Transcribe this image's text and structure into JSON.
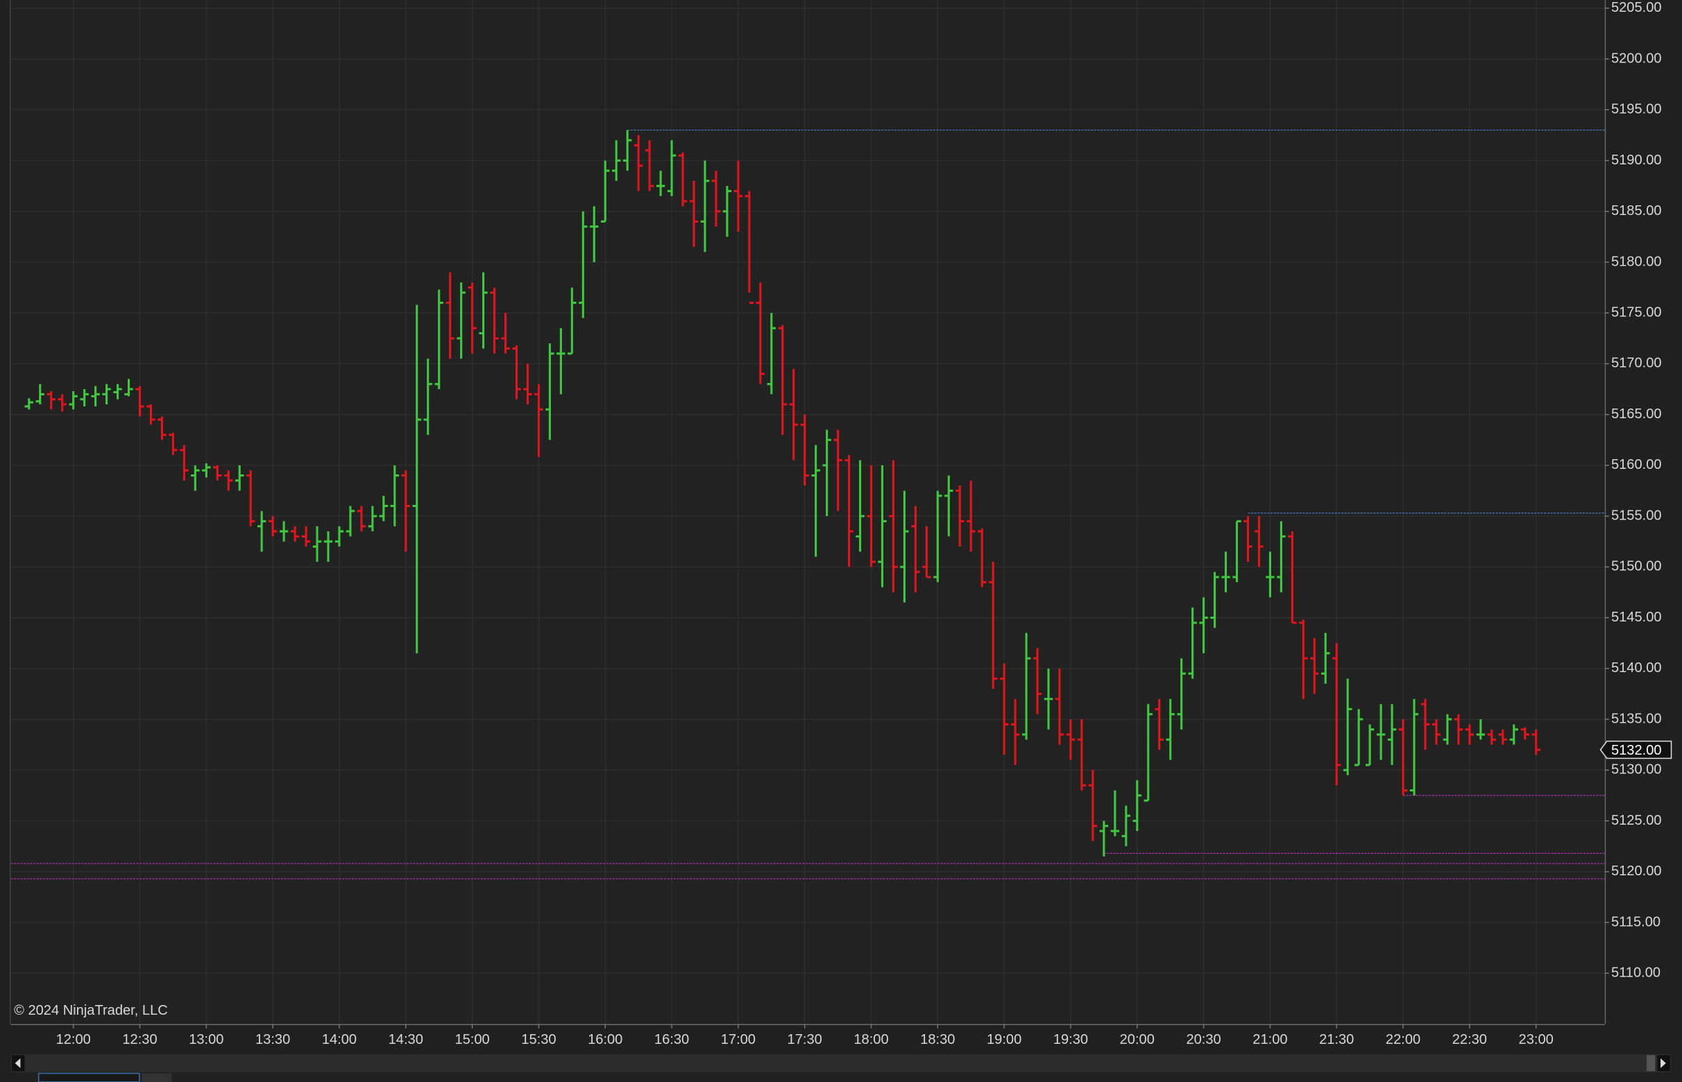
{
  "chart_data": {
    "type": "ohlc",
    "copyright": "© 2024 NinjaTrader, LLC",
    "up_color": "#3ec93e",
    "down_color": "#e3141e",
    "grid": true,
    "ylim": [
      5105,
      5205.8
    ],
    "xlim": [
      -1.65,
      142.2
    ],
    "yticks": [
      {
        "value": 5110,
        "label": "5110.00"
      },
      {
        "value": 5115,
        "label": "5115.00"
      },
      {
        "value": 5120,
        "label": "5120.00"
      },
      {
        "value": 5125,
        "label": "5125.00"
      },
      {
        "value": 5130,
        "label": "5130.00"
      },
      {
        "value": 5135,
        "label": "5135.00"
      },
      {
        "value": 5140,
        "label": "5140.00"
      },
      {
        "value": 5145,
        "label": "5145.00"
      },
      {
        "value": 5150,
        "label": "5150.00"
      },
      {
        "value": 5155,
        "label": "5155.00"
      },
      {
        "value": 5160,
        "label": "5160.00"
      },
      {
        "value": 5165,
        "label": "5165.00"
      },
      {
        "value": 5170,
        "label": "5170.00"
      },
      {
        "value": 5175,
        "label": "5175.00"
      },
      {
        "value": 5180,
        "label": "5180.00"
      },
      {
        "value": 5185,
        "label": "5185.00"
      },
      {
        "value": 5190,
        "label": "5190.00"
      },
      {
        "value": 5195,
        "label": "5195.00"
      },
      {
        "value": 5200,
        "label": "5200.00"
      },
      {
        "value": 5205,
        "label": "5205.00"
      }
    ],
    "xticks": [
      {
        "value": 4,
        "label": "12:00"
      },
      {
        "value": 10,
        "label": "12:30"
      },
      {
        "value": 16,
        "label": "13:00"
      },
      {
        "value": 22,
        "label": "13:30"
      },
      {
        "value": 28,
        "label": "14:00"
      },
      {
        "value": 34,
        "label": "14:30"
      },
      {
        "value": 40,
        "label": "15:00"
      },
      {
        "value": 46,
        "label": "15:30"
      },
      {
        "value": 52,
        "label": "16:00"
      },
      {
        "value": 58,
        "label": "16:30"
      },
      {
        "value": 64,
        "label": "17:00"
      },
      {
        "value": 70,
        "label": "17:30"
      },
      {
        "value": 76,
        "label": "18:00"
      },
      {
        "value": 82,
        "label": "18:30"
      },
      {
        "value": 88,
        "label": "19:00"
      },
      {
        "value": 94,
        "label": "19:30"
      },
      {
        "value": 100,
        "label": "20:00"
      },
      {
        "value": 106,
        "label": "20:30"
      },
      {
        "value": 112,
        "label": "21:00"
      },
      {
        "value": 118,
        "label": "21:30"
      },
      {
        "value": 124,
        "label": "22:00"
      },
      {
        "value": 130,
        "label": "22:30"
      },
      {
        "value": 136,
        "label": "23:00"
      }
    ],
    "last_price": {
      "value": 5132,
      "label": "5132.00"
    },
    "lines": [
      {
        "value": 5193,
        "color": "#3f7fc0",
        "x0": 54
      },
      {
        "value": 5155.3,
        "color": "#3f7fc0",
        "x0": 110
      },
      {
        "value": 5127.5,
        "color": "#b030b0",
        "x0": 124
      },
      {
        "value": 5121.8,
        "color": "#b030b0",
        "x0": 97
      },
      {
        "value": 5120.8,
        "color": "#b030b0",
        "x0": -1.65
      },
      {
        "value": 5119.3,
        "color": "#b030b0",
        "x0": -1.65
      }
    ],
    "open": [
      5165.8,
      5166.3,
      5167,
      5166.5,
      5166,
      5166.5,
      5166.8,
      5167,
      5167.2,
      5167,
      5167.5,
      5165.8,
      5164.5,
      5163,
      5161.5,
      5159,
      5159.5,
      5159.8,
      5159,
      5158.5,
      5159,
      5154,
      5154.5,
      5153.5,
      5153.5,
      5153,
      5152,
      5152.5,
      5152.5,
      5153.5,
      5155.5,
      5154,
      5155,
      5156,
      5159,
      5156,
      5164.5,
      5168,
      5176,
      5172.5,
      5177.5,
      5173,
      5177,
      5172.5,
      5171.5,
      5167.5,
      5167,
      5165.5,
      5171,
      5171,
      5176,
      5183.5,
      5184,
      5189,
      5190,
      5191.5,
      5191,
      5187.5,
      5187,
      5190.5,
      5186,
      5184,
      5188,
      5185,
      5187,
      5186.5,
      5176,
      5168,
      5173.5,
      5166,
      5164,
      5159,
      5160,
      5162.5,
      5160.5,
      5153,
      5155,
      5150.5,
      5155,
      5150,
      5154,
      5150,
      5149,
      5157,
      5157.5,
      5154.5,
      5153.5,
      5148.5,
      5139,
      5134.5,
      5133.5,
      5141,
      5137,
      5137,
      5133.5,
      5133,
      5128.5,
      5124,
      5124,
      5123.5,
      5125,
      5127,
      5136,
      5133,
      5135.5,
      5139.5,
      5144.5,
      5145,
      5149,
      5149,
      5154.5,
      5153.5,
      5149,
      5149,
      5153,
      5144.5,
      5141,
      5139.5,
      5141,
      5130,
      5130.5,
      5130.5,
      5133.5,
      5133,
      5134,
      5128,
      5136.5,
      5134.5,
      5133,
      5135,
      5134,
      5133.5,
      5133.5,
      5133.5,
      5133,
      5134,
      5133.5
    ],
    "high": [
      5166.6,
      5168,
      5167.3,
      5167,
      5167.3,
      5167.5,
      5167.8,
      5168,
      5168,
      5168.5,
      5167.8,
      5166,
      5164.8,
      5163.2,
      5162,
      5160,
      5160.2,
      5160,
      5159.5,
      5160,
      5159.5,
      5155.5,
      5155,
      5154.5,
      5154,
      5154,
      5154,
      5153.5,
      5154,
      5156,
      5156,
      5156,
      5157,
      5160,
      5159.5,
      5175.8,
      5170.5,
      5177.3,
      5179,
      5178,
      5178,
      5179,
      5177.5,
      5175,
      5171.8,
      5170,
      5168,
      5172,
      5173.5,
      5177.5,
      5185,
      5185.5,
      5190,
      5192,
      5193,
      5192.5,
      5192,
      5189,
      5192,
      5190.8,
      5188,
      5190,
      5189,
      5187.5,
      5190,
      5187,
      5178,
      5175,
      5173.8,
      5169.5,
      5165,
      5162,
      5163.5,
      5163.5,
      5161,
      5160.5,
      5160,
      5160,
      5160.5,
      5157.5,
      5156,
      5154,
      5157.5,
      5159,
      5158,
      5158.5,
      5153.8,
      5150.5,
      5140.5,
      5137,
      5143.5,
      5142,
      5140,
      5140,
      5135,
      5135,
      5130,
      5125,
      5128,
      5126.5,
      5129,
      5136.5,
      5137,
      5137,
      5141,
      5146,
      5147,
      5149.5,
      5151.5,
      5154.5,
      5155,
      5155,
      5151.5,
      5154.5,
      5153.5,
      5144.8,
      5143,
      5143.5,
      5142.5,
      5139,
      5136,
      5134.5,
      5136.5,
      5136.5,
      5135,
      5137,
      5137,
      5135,
      5135.5,
      5135.5,
      5134.5,
      5135,
      5134,
      5134,
      5134.5,
      5134.2,
      5134
    ],
    "low": [
      5165.5,
      5166,
      5165.5,
      5165.3,
      5165.5,
      5165.8,
      5165.8,
      5166,
      5166.5,
      5166.8,
      5164.8,
      5164,
      5162.5,
      5161,
      5158.5,
      5157.5,
      5158.8,
      5158.5,
      5157.5,
      5157.5,
      5154,
      5151.5,
      5153,
      5152.5,
      5152.5,
      5152,
      5150.5,
      5150.5,
      5152,
      5153,
      5153.5,
      5153.5,
      5154.5,
      5154,
      5151.5,
      5141.5,
      5163,
      5167.5,
      5170.5,
      5170.5,
      5171,
      5171.5,
      5171,
      5171,
      5166.5,
      5166,
      5160.8,
      5162.5,
      5167,
      5171,
      5174.5,
      5180,
      5184,
      5188,
      5189,
      5187,
      5187,
      5186.5,
      5186.5,
      5185.5,
      5181.5,
      5181,
      5183.5,
      5182.5,
      5183,
      5177,
      5168,
      5167,
      5163,
      5160.5,
      5158,
      5151,
      5155,
      5155.5,
      5150,
      5151.5,
      5150,
      5148,
      5147.5,
      5146.5,
      5147.5,
      5149,
      5148.5,
      5153,
      5152,
      5151.5,
      5148,
      5138,
      5131.5,
      5130.5,
      5133,
      5135.5,
      5134,
      5132.5,
      5131,
      5128,
      5123,
      5121.5,
      5123.5,
      5122.5,
      5124,
      5127,
      5132,
      5131,
      5134,
      5139,
      5141.5,
      5144,
      5147.5,
      5148.5,
      5150.5,
      5150,
      5147,
      5147.5,
      5144.5,
      5137,
      5137.5,
      5138.5,
      5128.5,
      5129.5,
      5130.5,
      5130.5,
      5131,
      5130.5,
      5127.5,
      5127.5,
      5132,
      5132.5,
      5132.5,
      5132.5,
      5132.5,
      5133,
      5132.5,
      5132.5,
      5132.5,
      5133,
      5131.5
    ],
    "close": [
      5166.2,
      5167,
      5166.5,
      5166,
      5166.8,
      5167,
      5167,
      5167.5,
      5167.5,
      5167.5,
      5165.8,
      5164.5,
      5163,
      5161.5,
      5159.5,
      5159.5,
      5159.8,
      5159,
      5158.5,
      5159,
      5154.5,
      5154.5,
      5153.5,
      5153.5,
      5153,
      5152.5,
      5152.5,
      5152.5,
      5153.5,
      5155.5,
      5154,
      5155,
      5156,
      5159,
      5156,
      5164.5,
      5168,
      5176,
      5172.5,
      5177,
      5173.5,
      5177,
      5172.5,
      5171.5,
      5167.5,
      5167,
      5165.5,
      5171,
      5171,
      5176,
      5183.5,
      5183.5,
      5189,
      5190,
      5192,
      5189.5,
      5187.5,
      5187.5,
      5190.5,
      5186,
      5184,
      5188,
      5185,
      5187,
      5186.5,
      5176,
      5169,
      5173.5,
      5166,
      5164,
      5159,
      5159.5,
      5162.5,
      5160.5,
      5153.5,
      5155,
      5150.5,
      5154.5,
      5150,
      5153.5,
      5149.5,
      5149,
      5157,
      5157.5,
      5154.5,
      5153.5,
      5148.5,
      5139,
      5134.5,
      5133.5,
      5141,
      5137.5,
      5137,
      5133.5,
      5133,
      5128.5,
      5124.5,
      5124.5,
      5124,
      5125.5,
      5127.5,
      5135.5,
      5133,
      5135.5,
      5139.5,
      5144.5,
      5145,
      5149,
      5149,
      5154.5,
      5152,
      5152,
      5149,
      5153,
      5144.5,
      5141,
      5139.5,
      5141.5,
      5130.5,
      5136,
      5135,
      5134,
      5133.5,
      5134,
      5128,
      5135.5,
      5134.5,
      5133.5,
      5135,
      5134,
      5133.5,
      5133.5,
      5133,
      5133,
      5134,
      5133.5,
      5132
    ]
  }
}
